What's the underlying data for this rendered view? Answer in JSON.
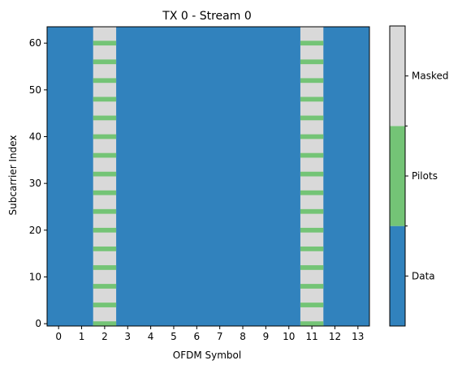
{
  "chart_data": {
    "type": "heatmap",
    "title": "TX 0 - Stream 0",
    "xlabel": "OFDM Symbol",
    "ylabel": "Subcarrier Index",
    "x_ticks": [
      0,
      1,
      2,
      3,
      4,
      5,
      6,
      7,
      8,
      9,
      10,
      11,
      12,
      13
    ],
    "y_ticks": [
      0,
      10,
      20,
      30,
      40,
      50,
      60
    ],
    "n_symbols": 14,
    "n_subcarriers": 64,
    "xlim": [
      -0.5,
      13.5
    ],
    "ylim": [
      -0.5,
      63.5
    ],
    "categories": [
      "Data",
      "Pilots",
      "Masked"
    ],
    "colors": {
      "Data": "#3182bd",
      "Pilots": "#74c476",
      "Masked": "#d9d9d9"
    },
    "pattern": {
      "default": "Data",
      "masked_symbols": [
        2,
        11
      ],
      "pilot_subcarriers": [
        0,
        4,
        8,
        12,
        16,
        20,
        24,
        28,
        32,
        36,
        40,
        44,
        48,
        52,
        56,
        60
      ]
    },
    "colorbar": {
      "labels": [
        "Data",
        "Pilots",
        "Masked"
      ]
    }
  }
}
